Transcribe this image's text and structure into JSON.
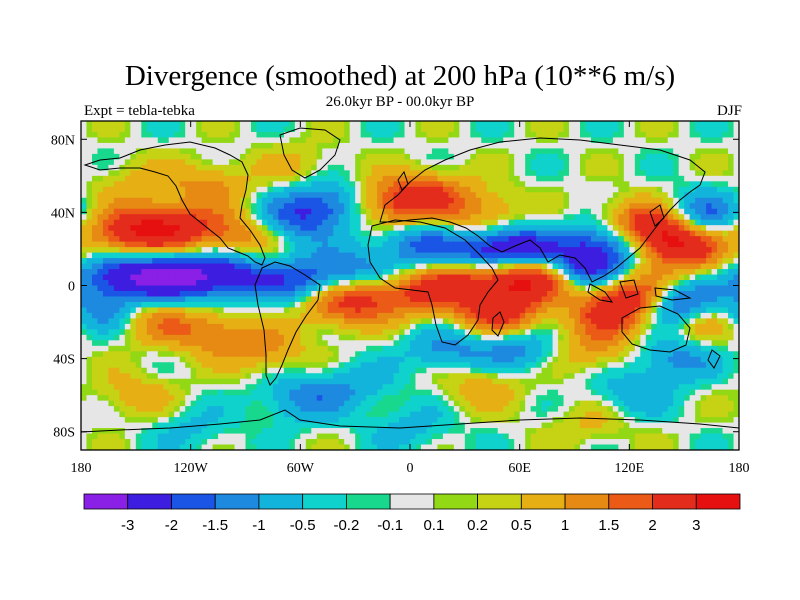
{
  "title": "Divergence (smoothed) at 200 hPa (10**6 m/s)",
  "left_label": "Expt = tebla-tebka",
  "center_label": "26.0kyr BP - 00.0kyr BP",
  "right_label": "DJF",
  "lat_ticks": [
    "80N",
    "40N",
    "0",
    "40S",
    "80S"
  ],
  "lon_ticks": [
    "180",
    "120W",
    "60W",
    "0",
    "60E",
    "120E",
    "180"
  ],
  "colorbar": {
    "labels": [
      "-3",
      "-2",
      "-1.5",
      "-1",
      "-0.5",
      "-0.2",
      "-0.1",
      "0.1",
      "0.2",
      "0.5",
      "1",
      "1.5",
      "2",
      "3"
    ],
    "colors": [
      "#8a1fe6",
      "#3d1ee0",
      "#1a55e6",
      "#1d8ae0",
      "#13b4dc",
      "#10d2cc",
      "#18d88e",
      "#e6e6e6",
      "#93d814",
      "#c6d214",
      "#e6b014",
      "#e68a14",
      "#eb5a16",
      "#e42c1c",
      "#e61010"
    ]
  },
  "chart_data": {
    "type": "heatmap",
    "title": "Divergence (smoothed) at 200 hPa (10**6 m/s)",
    "subtitle": "26.0kyr BP - 00.0kyr BP",
    "experiment": "Expt = tebla-tebka",
    "season": "DJF",
    "x_range": [
      -180,
      180
    ],
    "y_range": [
      -90,
      90
    ],
    "units": "10**6 m/s",
    "levels": [
      -3,
      -2,
      -1.5,
      -1,
      -0.5,
      -0.2,
      -0.1,
      0.1,
      0.2,
      0.5,
      1,
      1.5,
      2,
      3
    ],
    "field_blobs_lon_lat_value": [
      [
        -160,
        28,
        1.7
      ],
      [
        -140,
        32,
        2.0
      ],
      [
        -120,
        30,
        1.4
      ],
      [
        -90,
        28,
        1.3
      ],
      [
        -160,
        5,
        -2.3
      ],
      [
        -130,
        5,
        -2.8
      ],
      [
        -100,
        5,
        -2.3
      ],
      [
        -60,
        2,
        -1.8
      ],
      [
        -30,
        8,
        -1.4
      ],
      [
        -170,
        -15,
        -1.2
      ],
      [
        -140,
        -20,
        1.1
      ],
      [
        -110,
        -25,
        1.3
      ],
      [
        -80,
        -35,
        1.2
      ],
      [
        -40,
        -10,
        1.8
      ],
      [
        -20,
        -5,
        1.4
      ],
      [
        -65,
        35,
        -1.5
      ],
      [
        -45,
        45,
        -1.7
      ],
      [
        -110,
        55,
        1.1
      ],
      [
        -150,
        55,
        0.7
      ],
      [
        -60,
        65,
        0.6
      ],
      [
        -10,
        45,
        1.8
      ],
      [
        10,
        50,
        1.6
      ],
      [
        40,
        40,
        1.2
      ],
      [
        5,
        22,
        -1.5
      ],
      [
        40,
        15,
        -2.4
      ],
      [
        60,
        20,
        -2.3
      ],
      [
        30,
        5,
        2.0
      ],
      [
        55,
        5,
        2.3
      ],
      [
        75,
        5,
        2.0
      ],
      [
        10,
        -5,
        1.6
      ],
      [
        50,
        -15,
        2.3
      ],
      [
        95,
        10,
        -2.9
      ],
      [
        110,
        25,
        -2.0
      ],
      [
        120,
        35,
        1.2
      ],
      [
        135,
        30,
        2.5
      ],
      [
        150,
        20,
        2.3
      ],
      [
        160,
        38,
        -1.8
      ],
      [
        145,
        -10,
        -2.7
      ],
      [
        125,
        -5,
        2.4
      ],
      [
        110,
        -15,
        2.0
      ],
      [
        160,
        -20,
        1.3
      ],
      [
        20,
        -35,
        -1.2
      ],
      [
        60,
        -35,
        -1.3
      ],
      [
        100,
        -35,
        1.1
      ],
      [
        145,
        -40,
        -1.3
      ],
      [
        -30,
        -55,
        -0.8
      ],
      [
        40,
        -55,
        0.9
      ],
      [
        120,
        -60,
        -0.9
      ],
      [
        -150,
        -60,
        0.8
      ],
      [
        -60,
        -62,
        -1.2
      ],
      [
        0,
        -78,
        -0.7
      ],
      [
        100,
        -75,
        0.6
      ],
      [
        -120,
        -78,
        -0.6
      ]
    ]
  }
}
